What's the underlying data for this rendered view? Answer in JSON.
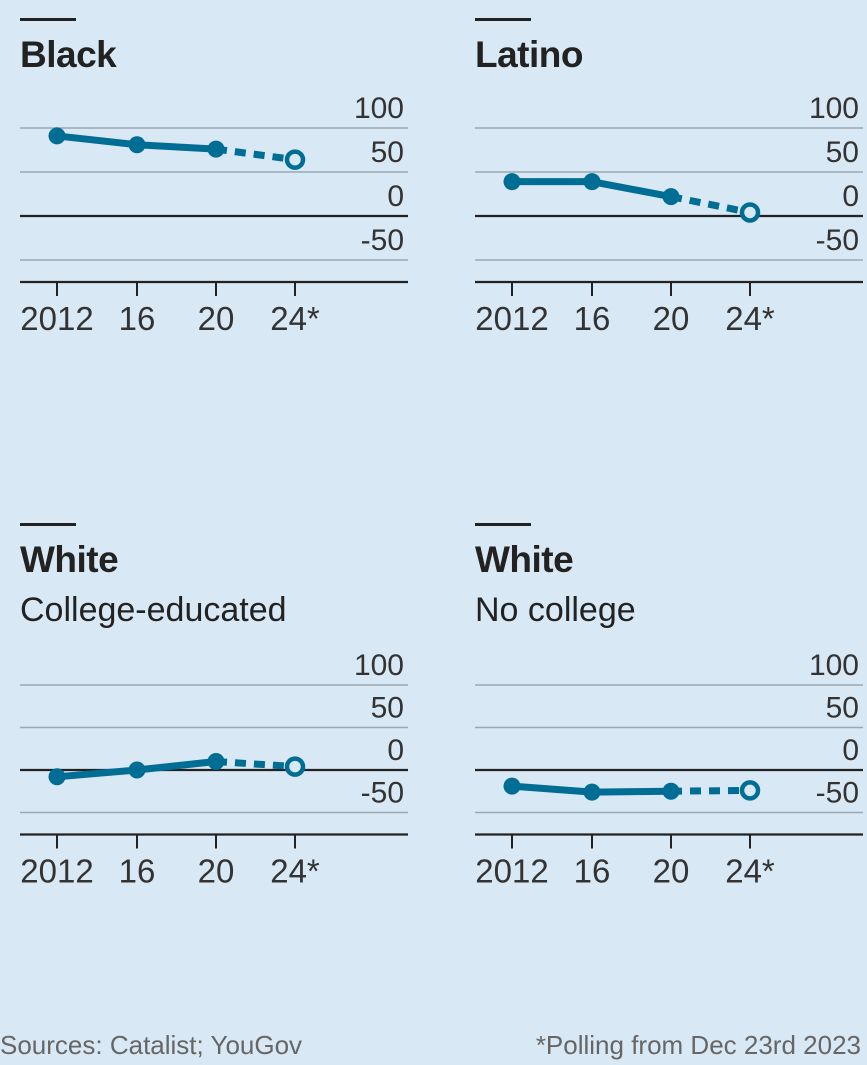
{
  "chart_data": [
    {
      "type": "line",
      "title": "Black",
      "subtitle": "",
      "categories": [
        "2012",
        "16",
        "20",
        "24*"
      ],
      "values": [
        91,
        81,
        76,
        64
      ],
      "projected_last": true,
      "yticks": [
        "100",
        "50",
        "0",
        "-50"
      ],
      "ylim": [
        -65,
        100
      ]
    },
    {
      "type": "line",
      "title": "Latino",
      "subtitle": "",
      "categories": [
        "2012",
        "16",
        "20",
        "24*"
      ],
      "values": [
        39,
        39,
        22,
        4
      ],
      "projected_last": true,
      "yticks": [
        "100",
        "50",
        "0",
        "-50"
      ],
      "ylim": [
        -65,
        100
      ]
    },
    {
      "type": "line",
      "title": "White",
      "subtitle": "College-educated",
      "categories": [
        "2012",
        "16",
        "20",
        "24*"
      ],
      "values": [
        -8,
        0,
        10,
        4
      ],
      "projected_last": true,
      "yticks": [
        "100",
        "50",
        "0",
        "-50"
      ],
      "ylim": [
        -65,
        100
      ]
    },
    {
      "type": "line",
      "title": "White",
      "subtitle": "No college",
      "categories": [
        "2012",
        "16",
        "20",
        "24*"
      ],
      "values": [
        -19,
        -26,
        -25,
        -24
      ],
      "projected_last": true,
      "yticks": [
        "100",
        "50",
        "0",
        "-50"
      ],
      "ylim": [
        -65,
        100
      ]
    }
  ],
  "colors": {
    "line": "#006d94",
    "axis": "#222222",
    "grid": "#9aa8b4",
    "background": "#d8e8f4"
  },
  "footer": {
    "source": "Sources: Catalist; YouGov",
    "footnote": "*Polling from Dec 23rd 2023"
  }
}
